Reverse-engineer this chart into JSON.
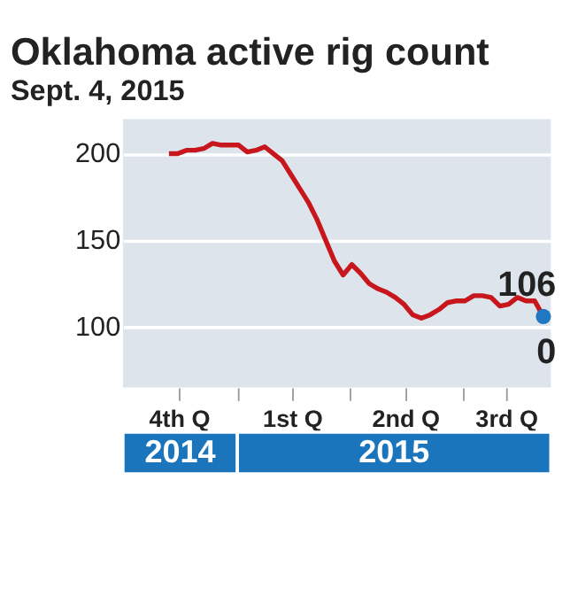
{
  "chart_data": {
    "type": "line",
    "title": "Oklahoma active rig count",
    "subtitle": "Sept. 4, 2015",
    "x": [
      "2014-11-07",
      "2014-11-14",
      "2014-11-21",
      "2014-11-28",
      "2014-12-05",
      "2014-12-12",
      "2014-12-19",
      "2014-12-26",
      "2015-01-02",
      "2015-01-09",
      "2015-01-16",
      "2015-01-23",
      "2015-01-30",
      "2015-02-06",
      "2015-02-13",
      "2015-02-20",
      "2015-02-27",
      "2015-03-06",
      "2015-03-13",
      "2015-03-20",
      "2015-03-27",
      "2015-04-03",
      "2015-04-10",
      "2015-04-17",
      "2015-04-24",
      "2015-05-01",
      "2015-05-08",
      "2015-05-15",
      "2015-05-22",
      "2015-05-29",
      "2015-06-05",
      "2015-06-12",
      "2015-06-19",
      "2015-06-26",
      "2015-07-03",
      "2015-07-10",
      "2015-07-17",
      "2015-07-24",
      "2015-07-31",
      "2015-08-07",
      "2015-08-14",
      "2015-08-21",
      "2015-08-28",
      "2015-09-04"
    ],
    "series": [
      {
        "color": "#c8161d",
        "marker": "none",
        "line_style": "solid",
        "values": [
          200,
          200,
          202,
          202,
          203,
          206,
          205,
          205,
          205,
          201,
          202,
          204,
          200,
          196,
          188,
          180,
          172,
          162,
          150,
          138,
          130,
          136,
          131,
          125,
          122,
          120,
          117,
          113,
          107,
          105,
          107,
          110,
          114,
          115,
          115,
          118,
          118,
          117,
          112,
          113,
          117,
          115,
          115,
          106
        ],
        "value_labels": [
          null,
          null,
          null,
          null,
          null,
          null,
          null,
          null,
          null,
          null,
          null,
          null,
          null,
          null,
          null,
          null,
          null,
          null,
          null,
          null,
          null,
          null,
          null,
          null,
          null,
          null,
          null,
          null,
          null,
          null,
          null,
          null,
          null,
          null,
          null,
          null,
          null,
          null,
          null,
          null,
          null,
          null,
          null,
          "106"
        ]
      },
      {
        "type": "scatter",
        "marker": "circle",
        "color": "#1f78c1",
        "x": [
          "2015-09-04"
        ],
        "values": [
          106
        ]
      }
    ],
    "xlim": [
      "2014-10-01",
      "2015-09-10"
    ],
    "xticks": [
      {
        "value": "2014-11-15",
        "label": "4th Q"
      },
      {
        "value": "2015-01-01",
        "label": null
      },
      {
        "value": "2015-02-14",
        "label": "1st Q"
      },
      {
        "value": "2015-04-01",
        "label": null
      },
      {
        "value": "2015-05-16",
        "label": "2nd Q"
      },
      {
        "value": "2015-07-01",
        "label": null
      },
      {
        "value": "2015-08-05",
        "label": "3rd Q"
      }
    ],
    "ylim": [
      65,
      220
    ],
    "yticks": [
      100,
      150,
      200
    ],
    "grid": "y",
    "annotations": [
      "0",
      "2014",
      "2015"
    ]
  }
}
